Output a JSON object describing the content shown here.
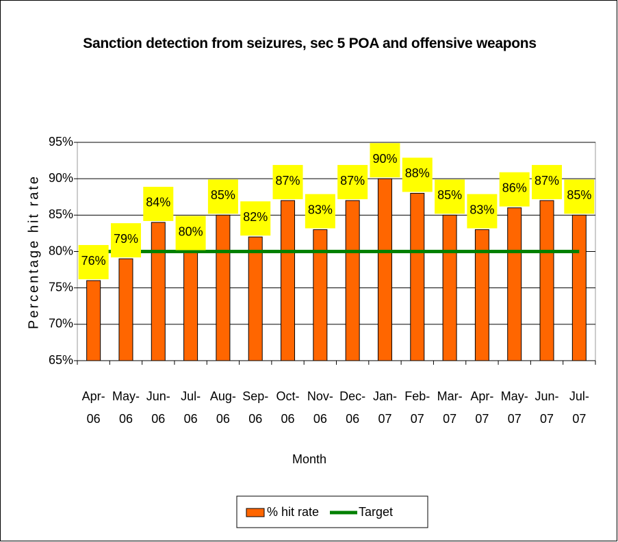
{
  "chart_data": {
    "type": "bar",
    "title": "Sanction detection from seizures, sec 5 POA and offensive weapons",
    "x_label": "Month",
    "y_label": "Percentage hit rate",
    "categories": [
      "Apr-06",
      "May-06",
      "Jun-06",
      "Jul-06",
      "Aug-06",
      "Sep-06",
      "Oct-06",
      "Nov-06",
      "Dec-06",
      "Jan-07",
      "Feb-07",
      "Mar-07",
      "Apr-07",
      "May-07",
      "Jun-07",
      "Jul-07"
    ],
    "series": [
      {
        "name": "% hit rate",
        "type": "bar",
        "color": "#ff6600",
        "values": [
          76,
          79,
          84,
          80,
          85,
          82,
          87,
          83,
          87,
          90,
          88,
          85,
          83,
          86,
          87,
          85
        ],
        "value_labels": [
          "76%",
          "79%",
          "84%",
          "80%",
          "85%",
          "82%",
          "87%",
          "83%",
          "87%",
          "90%",
          "88%",
          "85%",
          "83%",
          "86%",
          "87%",
          "85%"
        ]
      },
      {
        "name": "Target",
        "type": "line",
        "color": "#008000",
        "values": [
          80,
          80,
          80,
          80,
          80,
          80,
          80,
          80,
          80,
          80,
          80,
          80,
          80,
          80,
          80,
          80
        ]
      }
    ],
    "ylim": [
      65,
      95
    ],
    "yticks": [
      {
        "value": 65,
        "label": "65%"
      },
      {
        "value": 70,
        "label": "70%"
      },
      {
        "value": 75,
        "label": "75%"
      },
      {
        "value": 80,
        "label": "80%"
      },
      {
        "value": 85,
        "label": "85%"
      },
      {
        "value": 90,
        "label": "90%"
      },
      {
        "value": 95,
        "label": "95%"
      }
    ],
    "grid": true,
    "legend": "bottom"
  }
}
